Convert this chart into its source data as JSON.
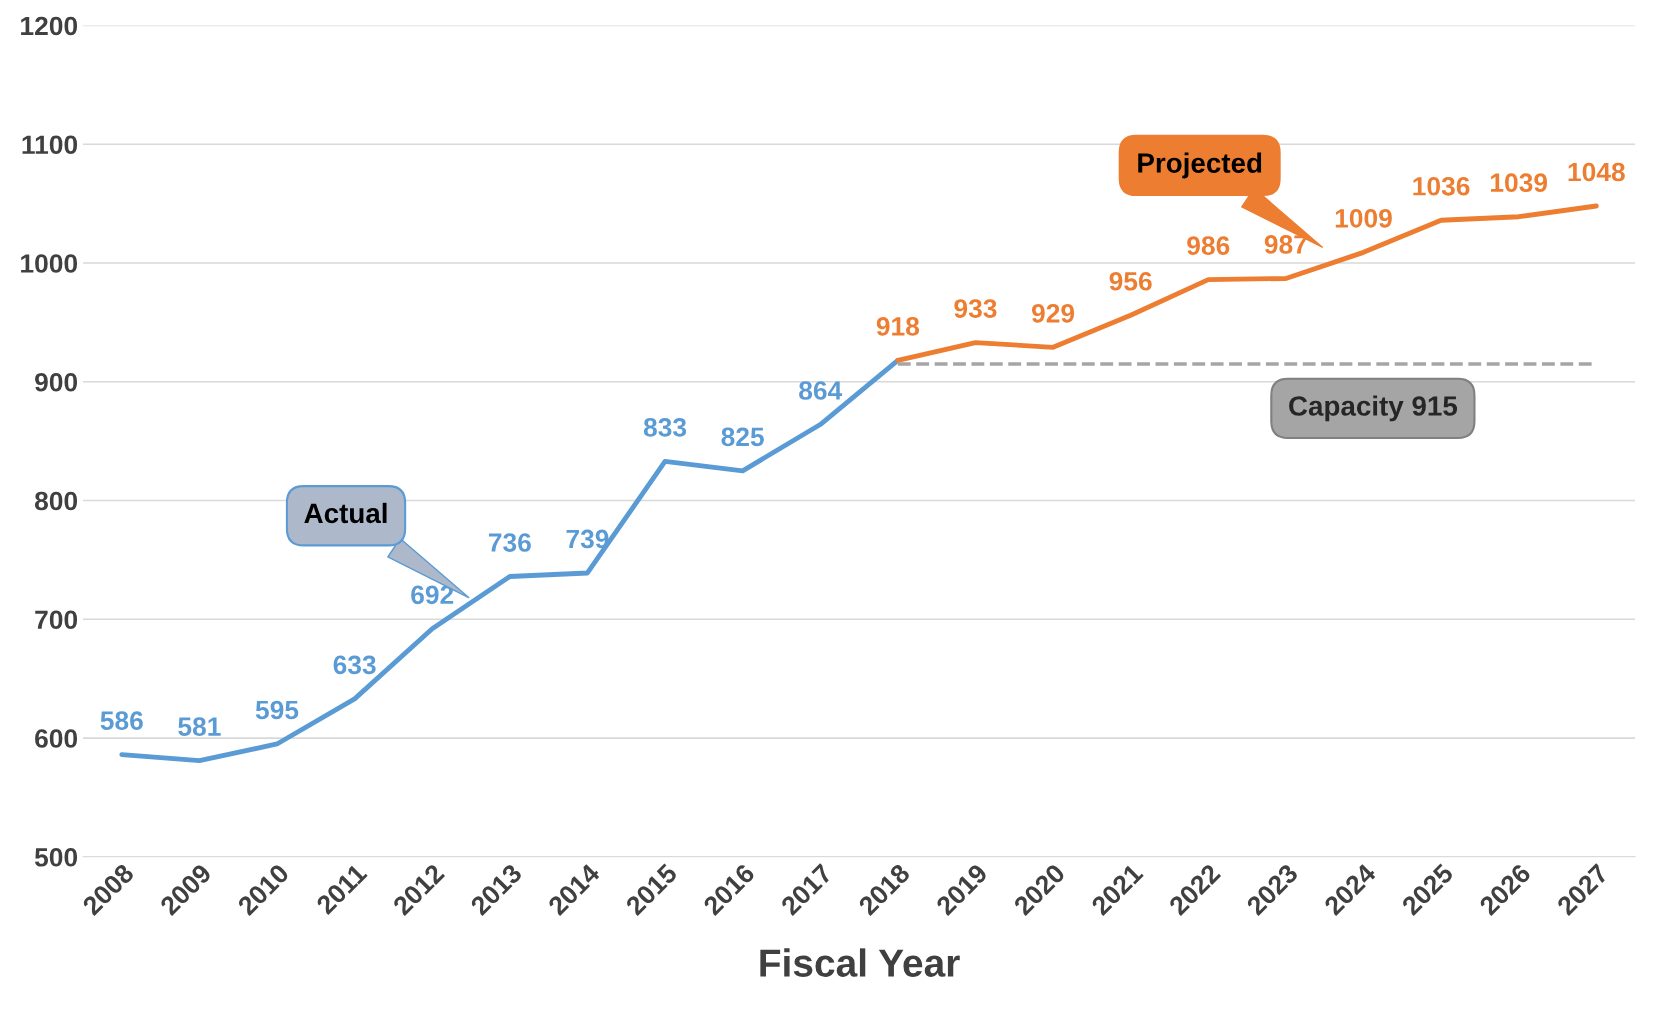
{
  "chart_data": {
    "type": "line",
    "xlabel": "Fiscal Year",
    "categories": [
      "2008",
      "2009",
      "2010",
      "2011",
      "2012",
      "2013",
      "2014",
      "2015",
      "2016",
      "2017",
      "2018",
      "2019",
      "2020",
      "2021",
      "2022",
      "2023",
      "2024",
      "2025",
      "2026",
      "2027"
    ],
    "series": [
      {
        "name": "Actual",
        "color": "#5b9bd5",
        "values": [
          586,
          581,
          595,
          633,
          692,
          736,
          739,
          833,
          825,
          864,
          918,
          null,
          null,
          null,
          null,
          null,
          null,
          null,
          null,
          null
        ],
        "value_labels": [
          "586",
          "581",
          "595",
          "633",
          "692",
          "736",
          "739",
          "833",
          "825",
          "864",
          null,
          null,
          null,
          null,
          null,
          null,
          null,
          null,
          null,
          null
        ]
      },
      {
        "name": "Projected",
        "color": "#ed7d31",
        "values": [
          null,
          null,
          null,
          null,
          null,
          null,
          null,
          null,
          null,
          null,
          918,
          933,
          929,
          956,
          986,
          987,
          1009,
          1036,
          1039,
          1048
        ],
        "value_labels": [
          null,
          null,
          null,
          null,
          null,
          null,
          null,
          null,
          null,
          null,
          "918",
          "933",
          "929",
          "956",
          "986",
          "987",
          "1009",
          "1036",
          "1039",
          "1048"
        ]
      }
    ],
    "ylim": [
      500,
      1200
    ],
    "yticks": [
      500,
      600,
      700,
      800,
      900,
      1000,
      1100,
      1200
    ],
    "grid": "y",
    "legend": false,
    "marker": "none",
    "line_style": "solid",
    "ref_lines": [
      {
        "axis": "y",
        "value": 915,
        "label": "Capacity 915",
        "color": "#a5a5a5",
        "line_style": "dashed"
      }
    ]
  }
}
